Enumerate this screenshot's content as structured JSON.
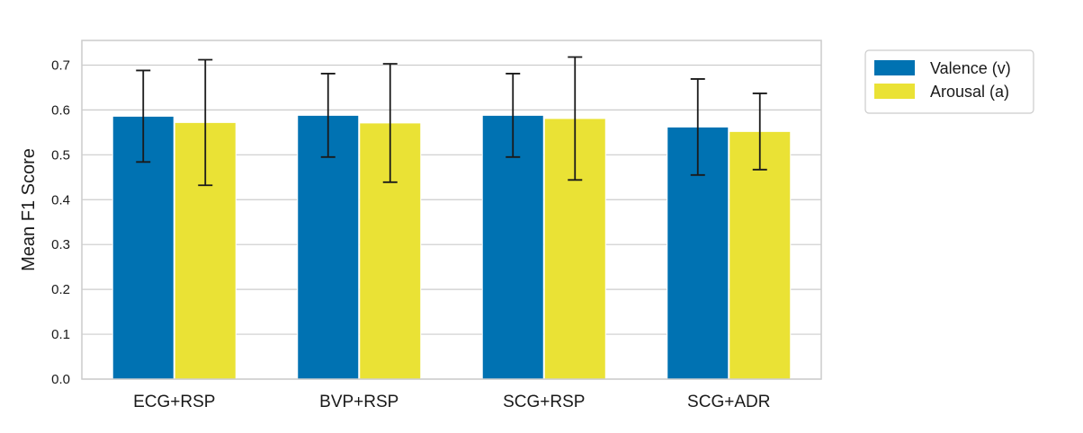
{
  "chart_data": {
    "type": "bar",
    "categories": [
      "ECG+RSP",
      "BVP+RSP",
      "SCG+RSP",
      "SCG+ADR"
    ],
    "series": [
      {
        "name": "Valence (v)",
        "color": "#0072b2",
        "values": [
          0.586,
          0.588,
          0.588,
          0.562
        ],
        "error": [
          0.102,
          0.093,
          0.093,
          0.107
        ]
      },
      {
        "name": "Arousal (a)",
        "color": "#eae235",
        "values": [
          0.572,
          0.571,
          0.581,
          0.552
        ],
        "error": [
          0.14,
          0.132,
          0.137,
          0.085
        ]
      }
    ],
    "title": "",
    "xlabel": "",
    "ylabel": "Mean F1 Score",
    "ylim": [
      0,
      0.755
    ],
    "yticks": [
      "0.0",
      "0.1",
      "0.2",
      "0.3",
      "0.4",
      "0.5",
      "0.6",
      "0.7"
    ],
    "grid": "y",
    "legend_position": "outside-top-right"
  }
}
